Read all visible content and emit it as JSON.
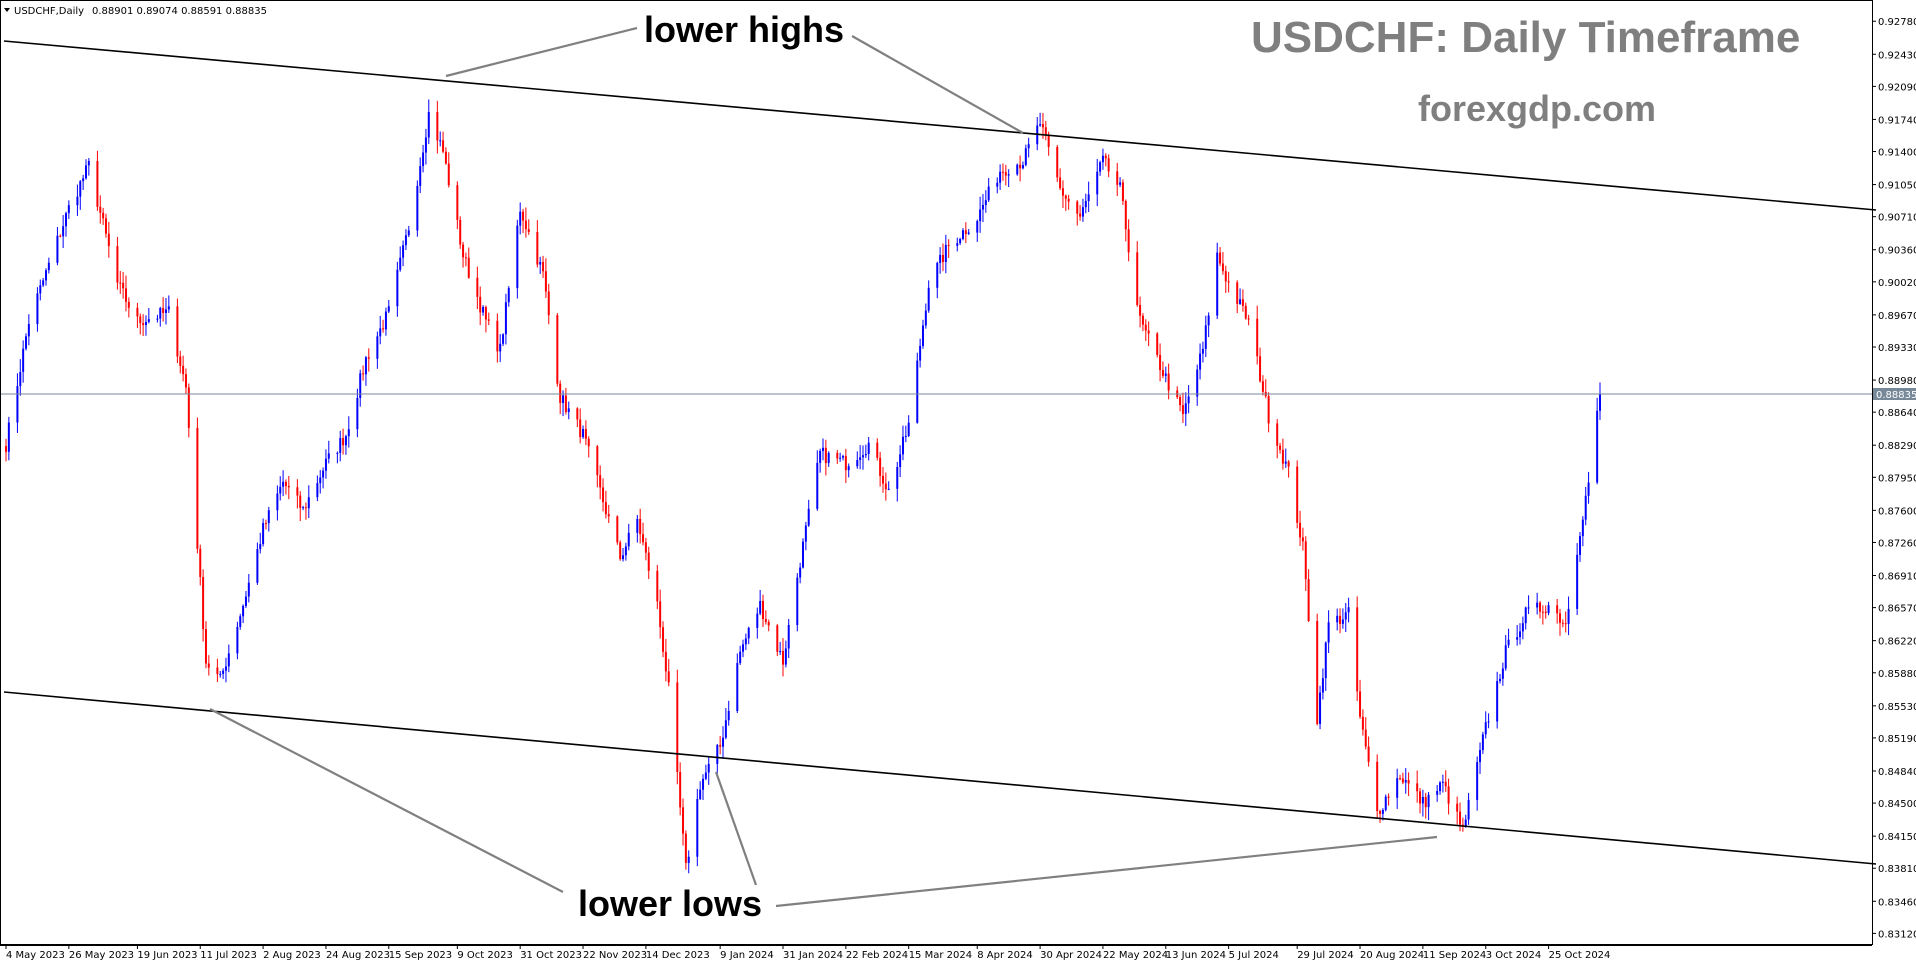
{
  "header": {
    "symbol": "USDCHF,Daily",
    "ohlc": "0.88901 0.89074 0.88591 0.88835"
  },
  "watermark": {
    "title": "USDCHF: Daily Timeframe",
    "site": "forexgdp.com"
  },
  "annotations": {
    "lower_highs": "lower highs",
    "lower_lows": "lower lows"
  },
  "colors": {
    "bull": "#0000ff",
    "bear": "#ff0000",
    "background": "#ffffff",
    "channel": "#000000",
    "pointer": "#808080",
    "current_price_line": "#778899"
  },
  "chart_data": {
    "type": "candlestick",
    "symbol": "USDCHF",
    "timeframe": "Daily",
    "y_ticks": [
      "0.92780",
      "0.92430",
      "0.92090",
      "0.91740",
      "0.91400",
      "0.91050",
      "0.90710",
      "0.90360",
      "0.90020",
      "0.89670",
      "0.89330",
      "0.88980",
      "0.88640",
      "0.88290",
      "0.87950",
      "0.87600",
      "0.87260",
      "0.86910",
      "0.86570",
      "0.86220",
      "0.85880",
      "0.85530",
      "0.85190",
      "0.84840",
      "0.84500",
      "0.84150",
      "0.83810",
      "0.83460",
      "0.83120"
    ],
    "x_ticks": [
      "4 May 2023",
      "26 May 2023",
      "19 Jun 2023",
      "11 Jul 2023",
      "2 Aug 2023",
      "24 Aug 2023",
      "15 Sep 2023",
      "9 Oct 2023",
      "31 Oct 2023",
      "22 Nov 2023",
      "14 Dec 2023",
      "9 Jan 2024",
      "31 Jan 2024",
      "22 Feb 2024",
      "15 Mar 2024",
      "8 Apr 2024",
      "30 Apr 2024",
      "22 May 2024",
      "13 Jun 2024",
      "5 Jul 2024",
      "29 Jul 2024",
      "20 Aug 2024",
      "11 Sep 2024",
      "3 Oct 2024",
      "25 Oct 2024"
    ],
    "ylim": [
      0.8305,
      0.9292
    ],
    "current_price": "0.88835",
    "key_points": [
      {
        "date": "4 May 2023",
        "close": 0.883
      },
      {
        "date": "12 May 2023",
        "close": 0.896
      },
      {
        "date": "26 May 2023",
        "close": 0.908
      },
      {
        "date": "2 Jun 2023",
        "close": 0.9125
      },
      {
        "date": "12 Jun 2023",
        "close": 0.9
      },
      {
        "date": "19 Jun 2023",
        "close": 0.896
      },
      {
        "date": "30 Jun 2023",
        "close": 0.897
      },
      {
        "date": "6 Jul 2023",
        "close": 0.889
      },
      {
        "date": "13 Jul 2023",
        "close": 0.86
      },
      {
        "date": "18 Jul 2023",
        "close": 0.858
      },
      {
        "date": "26 Jul 2023",
        "close": 0.866
      },
      {
        "date": "2 Aug 2023",
        "close": 0.874
      },
      {
        "date": "9 Aug 2023",
        "close": 0.879
      },
      {
        "date": "16 Aug 2023",
        "close": 0.876
      },
      {
        "date": "24 Aug 2023",
        "close": 0.881
      },
      {
        "date": "31 Aug 2023",
        "close": 0.884
      },
      {
        "date": "7 Sep 2023",
        "close": 0.892
      },
      {
        "date": "15 Sep 2023",
        "close": 0.897
      },
      {
        "date": "22 Sep 2023",
        "close": 0.906
      },
      {
        "date": "29 Sep 2023",
        "close": 0.918
      },
      {
        "date": "4 Oct 2023",
        "close": 0.914
      },
      {
        "date": "11 Oct 2023",
        "close": 0.903
      },
      {
        "date": "19 Oct 2023",
        "close": 0.896
      },
      {
        "date": "24 Oct 2023",
        "close": 0.893
      },
      {
        "date": "31 Oct 2023",
        "close": 0.908
      },
      {
        "date": "8 Nov 2023",
        "close": 0.901
      },
      {
        "date": "14 Nov 2023",
        "close": 0.888
      },
      {
        "date": "22 Nov 2023",
        "close": 0.884
      },
      {
        "date": "29 Nov 2023",
        "close": 0.877
      },
      {
        "date": "5 Dec 2023",
        "close": 0.871
      },
      {
        "date": "11 Dec 2023",
        "close": 0.875
      },
      {
        "date": "18 Dec 2023",
        "close": 0.866
      },
      {
        "date": "22 Dec 2023",
        "close": 0.857
      },
      {
        "date": "28 Dec 2023",
        "close": 0.838
      },
      {
        "date": "2 Jan 2024",
        "close": 0.847
      },
      {
        "date": "9 Jan 2024",
        "close": 0.851
      },
      {
        "date": "16 Jan 2024",
        "close": 0.861
      },
      {
        "date": "23 Jan 2024",
        "close": 0.866
      },
      {
        "date": "31 Jan 2024",
        "close": 0.86
      },
      {
        "date": "5 Feb 2024",
        "close": 0.869
      },
      {
        "date": "13 Feb 2024",
        "close": 0.882
      },
      {
        "date": "22 Feb 2024",
        "close": 0.881
      },
      {
        "date": "1 Mar 2024",
        "close": 0.883
      },
      {
        "date": "8 Mar 2024",
        "close": 0.878
      },
      {
        "date": "15 Mar 2024",
        "close": 0.885
      },
      {
        "date": "22 Mar 2024",
        "close": 0.9
      },
      {
        "date": "29 Mar 2024",
        "close": 0.904
      },
      {
        "date": "8 Apr 2024",
        "close": 0.907
      },
      {
        "date": "16 Apr 2024",
        "close": 0.912
      },
      {
        "date": "24 Apr 2024",
        "close": 0.913
      },
      {
        "date": "30 Apr 2024",
        "close": 0.917
      },
      {
        "date": "7 May 2024",
        "close": 0.91
      },
      {
        "date": "14 May 2024",
        "close": 0.907
      },
      {
        "date": "22 May 2024",
        "close": 0.913
      },
      {
        "date": "28 May 2024",
        "close": 0.91
      },
      {
        "date": "4 Jun 2024",
        "close": 0.896
      },
      {
        "date": "13 Jun 2024",
        "close": 0.89
      },
      {
        "date": "19 Jun 2024",
        "close": 0.886
      },
      {
        "date": "26 Jun 2024",
        "close": 0.893
      },
      {
        "date": "1 Jul 2024",
        "close": 0.903
      },
      {
        "date": "5 Jul 2024",
        "close": 0.9
      },
      {
        "date": "12 Jul 2024",
        "close": 0.896
      },
      {
        "date": "19 Jul 2024",
        "close": 0.886
      },
      {
        "date": "26 Jul 2024",
        "close": 0.88
      },
      {
        "date": "31 Jul 2024",
        "close": 0.872
      },
      {
        "date": "5 Aug 2024",
        "close": 0.854
      },
      {
        "date": "9 Aug 2024",
        "close": 0.864
      },
      {
        "date": "16 Aug 2024",
        "close": 0.865
      },
      {
        "date": "20 Aug 2024",
        "close": 0.854
      },
      {
        "date": "26 Aug 2024",
        "close": 0.844
      },
      {
        "date": "3 Sep 2024",
        "close": 0.848
      },
      {
        "date": "11 Sep 2024",
        "close": 0.845
      },
      {
        "date": "18 Sep 2024",
        "close": 0.847
      },
      {
        "date": "25 Sep 2024",
        "close": 0.842
      },
      {
        "date": "3 Oct 2024",
        "close": 0.853
      },
      {
        "date": "10 Oct 2024",
        "close": 0.861
      },
      {
        "date": "17 Oct 2024",
        "close": 0.865
      },
      {
        "date": "25 Oct 2024",
        "close": 0.866
      },
      {
        "date": "31 Oct 2024",
        "close": 0.864
      },
      {
        "date": "5 Nov 2024",
        "close": 0.874
      },
      {
        "date": "8 Nov 2024",
        "close": 0.879
      },
      {
        "date": "12 Nov 2024",
        "close": 0.8884
      }
    ],
    "trendlines": [
      {
        "name": "upper channel",
        "from": {
          "date": "4 May 2023",
          "price": 0.9258
        },
        "to": {
          "date": "12 Nov 2024",
          "price": 0.908
        }
      },
      {
        "name": "lower channel",
        "from": {
          "date": "4 May 2023",
          "price": 0.858
        },
        "to": {
          "date": "12 Nov 2024",
          "price": 0.839
        }
      }
    ],
    "grid": false
  }
}
